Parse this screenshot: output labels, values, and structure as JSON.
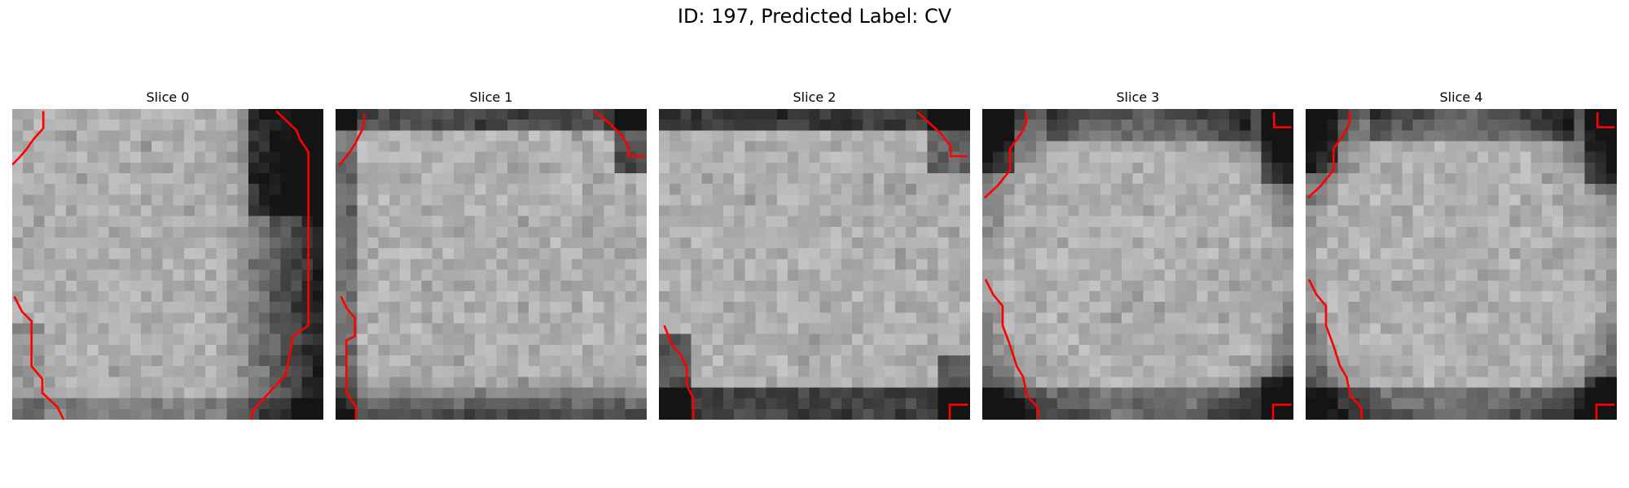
{
  "title": "ID: 197, Predicted Label: CV",
  "slices": [
    {
      "label": "Slice 0",
      "variant": 0
    },
    {
      "label": "Slice 1",
      "variant": 1
    },
    {
      "label": "Slice 2",
      "variant": 2
    },
    {
      "label": "Slice 3",
      "variant": 3
    },
    {
      "label": "Slice 4",
      "variant": 4
    }
  ],
  "colors": {
    "contour": "#ff0000",
    "background": "#ffffff"
  }
}
